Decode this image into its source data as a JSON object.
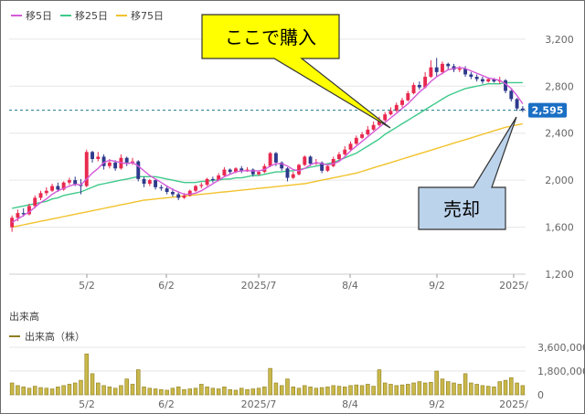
{
  "colors": {
    "ma5": "#d55ad8",
    "ma25": "#3ec98a",
    "ma75": "#f2c22c",
    "up": "#e8294f",
    "down": "#2e3a8c",
    "grid": "#e6e6e6",
    "axis_text": "#666666",
    "current_line": "#1f7a8c",
    "current_badge": "#1a6fc4",
    "buy_callout_fill": "#ffff00",
    "sell_callout_fill": "#bcd3ec",
    "volume_bar": "#c9b84a",
    "volume_bar_edge": "#8f7e1e"
  },
  "legend": {
    "ma5_label": "移5日",
    "ma25_label": "移25日",
    "ma75_label": "移75日"
  },
  "annotations": {
    "buy_label": "ここで購入",
    "sell_label": "売却"
  },
  "current_price_label": "2,595",
  "volume_title": "出来高",
  "volume_legend": "出来高（株）",
  "chart_data": [
    {
      "type": "candlestick",
      "x_ticks": [
        "5/2",
        "6/2",
        "2025/7",
        "8/4",
        "9/2",
        "2025/"
      ],
      "y_ticks": [
        "1,200",
        "1,600",
        "2,000",
        "2,400",
        "2,800",
        "3,200"
      ],
      "ylim": [
        1200,
        3300
      ],
      "current_price": 2595,
      "candles": [
        [
          1600,
          1680,
          1560,
          1700
        ],
        [
          1680,
          1720,
          1650,
          1750
        ],
        [
          1720,
          1710,
          1690,
          1760
        ],
        [
          1710,
          1780,
          1700,
          1800
        ],
        [
          1780,
          1850,
          1760,
          1870
        ],
        [
          1850,
          1890,
          1830,
          1910
        ],
        [
          1890,
          1910,
          1870,
          1940
        ],
        [
          1910,
          1950,
          1900,
          1970
        ],
        [
          1950,
          1920,
          1900,
          1980
        ],
        [
          1920,
          1980,
          1910,
          1990
        ],
        [
          1980,
          2000,
          1960,
          2020
        ],
        [
          2000,
          1960,
          1950,
          2030
        ],
        [
          1960,
          1950,
          1880,
          2010
        ],
        [
          1950,
          2240,
          1940,
          2260
        ],
        [
          2240,
          2180,
          2150,
          2250
        ],
        [
          2180,
          2200,
          2160,
          2240
        ],
        [
          2200,
          2120,
          2090,
          2220
        ],
        [
          2120,
          2150,
          2100,
          2180
        ],
        [
          2150,
          2100,
          2080,
          2170
        ],
        [
          2100,
          2190,
          2090,
          2220
        ],
        [
          2190,
          2150,
          2120,
          2200
        ],
        [
          2150,
          2160,
          2130,
          2190
        ],
        [
          2160,
          2010,
          1990,
          2170
        ],
        [
          2010,
          1970,
          1940,
          2030
        ],
        [
          1970,
          2000,
          1950,
          2010
        ],
        [
          2000,
          1940,
          1920,
          2010
        ],
        [
          1940,
          1930,
          1910,
          1960
        ],
        [
          1930,
          1900,
          1880,
          1950
        ],
        [
          1900,
          1880,
          1860,
          1930
        ],
        [
          1880,
          1850,
          1830,
          1900
        ],
        [
          1850,
          1870,
          1840,
          1890
        ],
        [
          1870,
          1910,
          1860,
          1920
        ],
        [
          1910,
          1950,
          1900,
          1960
        ],
        [
          1950,
          1960,
          1930,
          1980
        ],
        [
          1960,
          2010,
          1950,
          2020
        ],
        [
          2010,
          2000,
          1980,
          2030
        ],
        [
          2000,
          2040,
          1990,
          2060
        ],
        [
          2040,
          2090,
          2030,
          2110
        ],
        [
          2090,
          2070,
          2050,
          2100
        ],
        [
          2070,
          2100,
          2060,
          2110
        ],
        [
          2100,
          2080,
          2060,
          2120
        ],
        [
          2080,
          2090,
          2070,
          2110
        ],
        [
          2090,
          2050,
          2030,
          2100
        ],
        [
          2050,
          2070,
          2040,
          2080
        ],
        [
          2070,
          2120,
          2060,
          2140
        ],
        [
          2120,
          2230,
          2110,
          2240
        ],
        [
          2230,
          2150,
          2120,
          2240
        ],
        [
          2150,
          2100,
          2080,
          2160
        ],
        [
          2100,
          2020,
          1990,
          2110
        ],
        [
          2020,
          2050,
          2010,
          2070
        ],
        [
          2050,
          2130,
          2040,
          2140
        ],
        [
          2130,
          2200,
          2120,
          2210
        ],
        [
          2200,
          2140,
          2120,
          2210
        ],
        [
          2140,
          2150,
          2130,
          2180
        ],
        [
          2150,
          2080,
          2060,
          2160
        ],
        [
          2080,
          2120,
          2070,
          2130
        ],
        [
          2120,
          2180,
          2110,
          2200
        ],
        [
          2180,
          2220,
          2170,
          2240
        ],
        [
          2220,
          2260,
          2210,
          2290
        ],
        [
          2260,
          2310,
          2250,
          2330
        ],
        [
          2310,
          2360,
          2300,
          2380
        ],
        [
          2360,
          2390,
          2350,
          2410
        ],
        [
          2390,
          2430,
          2380,
          2460
        ],
        [
          2430,
          2470,
          2420,
          2500
        ],
        [
          2470,
          2510,
          2460,
          2540
        ],
        [
          2510,
          2560,
          2500,
          2580
        ],
        [
          2560,
          2590,
          2550,
          2620
        ],
        [
          2590,
          2640,
          2580,
          2660
        ],
        [
          2640,
          2680,
          2620,
          2700
        ],
        [
          2680,
          2740,
          2670,
          2760
        ],
        [
          2740,
          2810,
          2730,
          2830
        ],
        [
          2810,
          2790,
          2770,
          2840
        ],
        [
          2790,
          2880,
          2780,
          2920
        ],
        [
          2880,
          2960,
          2870,
          3020
        ],
        [
          2960,
          2920,
          2880,
          3040
        ],
        [
          2920,
          2990,
          2900,
          3010
        ],
        [
          2990,
          2970,
          2940,
          3000
        ],
        [
          2970,
          2940,
          2920,
          2990
        ],
        [
          2940,
          2950,
          2920,
          2970
        ],
        [
          2950,
          2900,
          2880,
          2970
        ],
        [
          2900,
          2880,
          2860,
          2920
        ],
        [
          2880,
          2860,
          2840,
          2900
        ],
        [
          2860,
          2840,
          2820,
          2880
        ],
        [
          2840,
          2860,
          2830,
          2870
        ],
        [
          2860,
          2840,
          2830,
          2870
        ],
        [
          2840,
          2850,
          2820,
          2880
        ],
        [
          2850,
          2760,
          2740,
          2860
        ],
        [
          2760,
          2690,
          2670,
          2770
        ],
        [
          2690,
          2610,
          2590,
          2700
        ],
        [
          2610,
          2595,
          2580,
          2630
        ]
      ],
      "ma5": [
        1640,
        1670,
        1700,
        1730,
        1770,
        1810,
        1840,
        1880,
        1910,
        1930,
        1950,
        1965,
        1960,
        2010,
        2060,
        2100,
        2150,
        2170,
        2160,
        2150,
        2140,
        2150,
        2120,
        2080,
        2040,
        2010,
        1980,
        1950,
        1920,
        1900,
        1880,
        1880,
        1890,
        1910,
        1940,
        1970,
        2000,
        2030,
        2050,
        2070,
        2080,
        2080,
        2080,
        2080,
        2090,
        2120,
        2140,
        2140,
        2120,
        2090,
        2080,
        2100,
        2130,
        2150,
        2140,
        2130,
        2140,
        2160,
        2200,
        2250,
        2290,
        2330,
        2370,
        2410,
        2450,
        2490,
        2530,
        2570,
        2610,
        2650,
        2700,
        2750,
        2790,
        2840,
        2880,
        2910,
        2940,
        2950,
        2960,
        2950,
        2930,
        2910,
        2890,
        2870,
        2860,
        2850,
        2820,
        2780,
        2720,
        2650
      ],
      "ma25": [
        1760,
        1770,
        1780,
        1790,
        1800,
        1810,
        1820,
        1840,
        1850,
        1870,
        1880,
        1890,
        1900,
        1920,
        1940,
        1960,
        1970,
        1980,
        1990,
        2000,
        2010,
        2020,
        2030,
        2030,
        2030,
        2030,
        2020,
        2010,
        2000,
        1990,
        1980,
        1980,
        1980,
        1990,
        1990,
        2000,
        2000,
        2010,
        2010,
        2020,
        2020,
        2030,
        2040,
        2040,
        2050,
        2060,
        2070,
        2070,
        2080,
        2080,
        2090,
        2100,
        2110,
        2120,
        2130,
        2140,
        2150,
        2170,
        2190,
        2210,
        2230,
        2260,
        2290,
        2320,
        2350,
        2390,
        2420,
        2450,
        2480,
        2510,
        2540,
        2570,
        2600,
        2630,
        2660,
        2690,
        2720,
        2740,
        2760,
        2780,
        2790,
        2800,
        2810,
        2820,
        2820,
        2820,
        2830,
        2830,
        2830,
        2830
      ],
      "ma75": [
        1600,
        1610,
        1620,
        1630,
        1640,
        1650,
        1660,
        1670,
        1680,
        1690,
        1700,
        1710,
        1720,
        1730,
        1740,
        1750,
        1760,
        1770,
        1780,
        1790,
        1800,
        1810,
        1820,
        1830,
        1835,
        1840,
        1845,
        1850,
        1855,
        1860,
        1865,
        1870,
        1875,
        1880,
        1885,
        1890,
        1895,
        1900,
        1905,
        1910,
        1915,
        1920,
        1925,
        1930,
        1935,
        1940,
        1945,
        1950,
        1955,
        1960,
        1965,
        1970,
        1980,
        1990,
        2000,
        2010,
        2020,
        2030,
        2040,
        2050,
        2060,
        2075,
        2090,
        2105,
        2120,
        2135,
        2150,
        2165,
        2180,
        2195,
        2210,
        2225,
        2240,
        2255,
        2270,
        2285,
        2300,
        2315,
        2330,
        2345,
        2360,
        2375,
        2390,
        2405,
        2420,
        2435,
        2450,
        2460,
        2470,
        2480
      ]
    },
    {
      "type": "bar",
      "title": "出来高",
      "series_name": "出来高（株）",
      "y_ticks": [
        "0",
        "1,800,000",
        "3,600,000"
      ],
      "ylim": [
        0,
        3600000
      ],
      "values": [
        900000,
        700000,
        600000,
        500000,
        650000,
        550000,
        500000,
        450000,
        600000,
        700000,
        800000,
        900000,
        1100000,
        3100000,
        1600000,
        900000,
        700000,
        600000,
        500000,
        700000,
        1200000,
        800000,
        1900000,
        600000,
        500000,
        450000,
        400000,
        350000,
        500000,
        600000,
        400000,
        450000,
        500000,
        800000,
        600000,
        500000,
        450000,
        600000,
        400000,
        350000,
        500000,
        400000,
        450000,
        500000,
        600000,
        2000000,
        900000,
        700000,
        1200000,
        600000,
        500000,
        700000,
        600000,
        500000,
        550000,
        600000,
        700000,
        650000,
        600000,
        700000,
        750000,
        700000,
        800000,
        650000,
        1900000,
        900000,
        800000,
        700000,
        750000,
        800000,
        900000,
        1000000,
        900000,
        950000,
        1800000,
        1200000,
        1000000,
        900000,
        800000,
        1600000,
        900000,
        800000,
        700000,
        650000,
        600000,
        1000000,
        1100000,
        1300000,
        900000,
        700000
      ]
    }
  ]
}
